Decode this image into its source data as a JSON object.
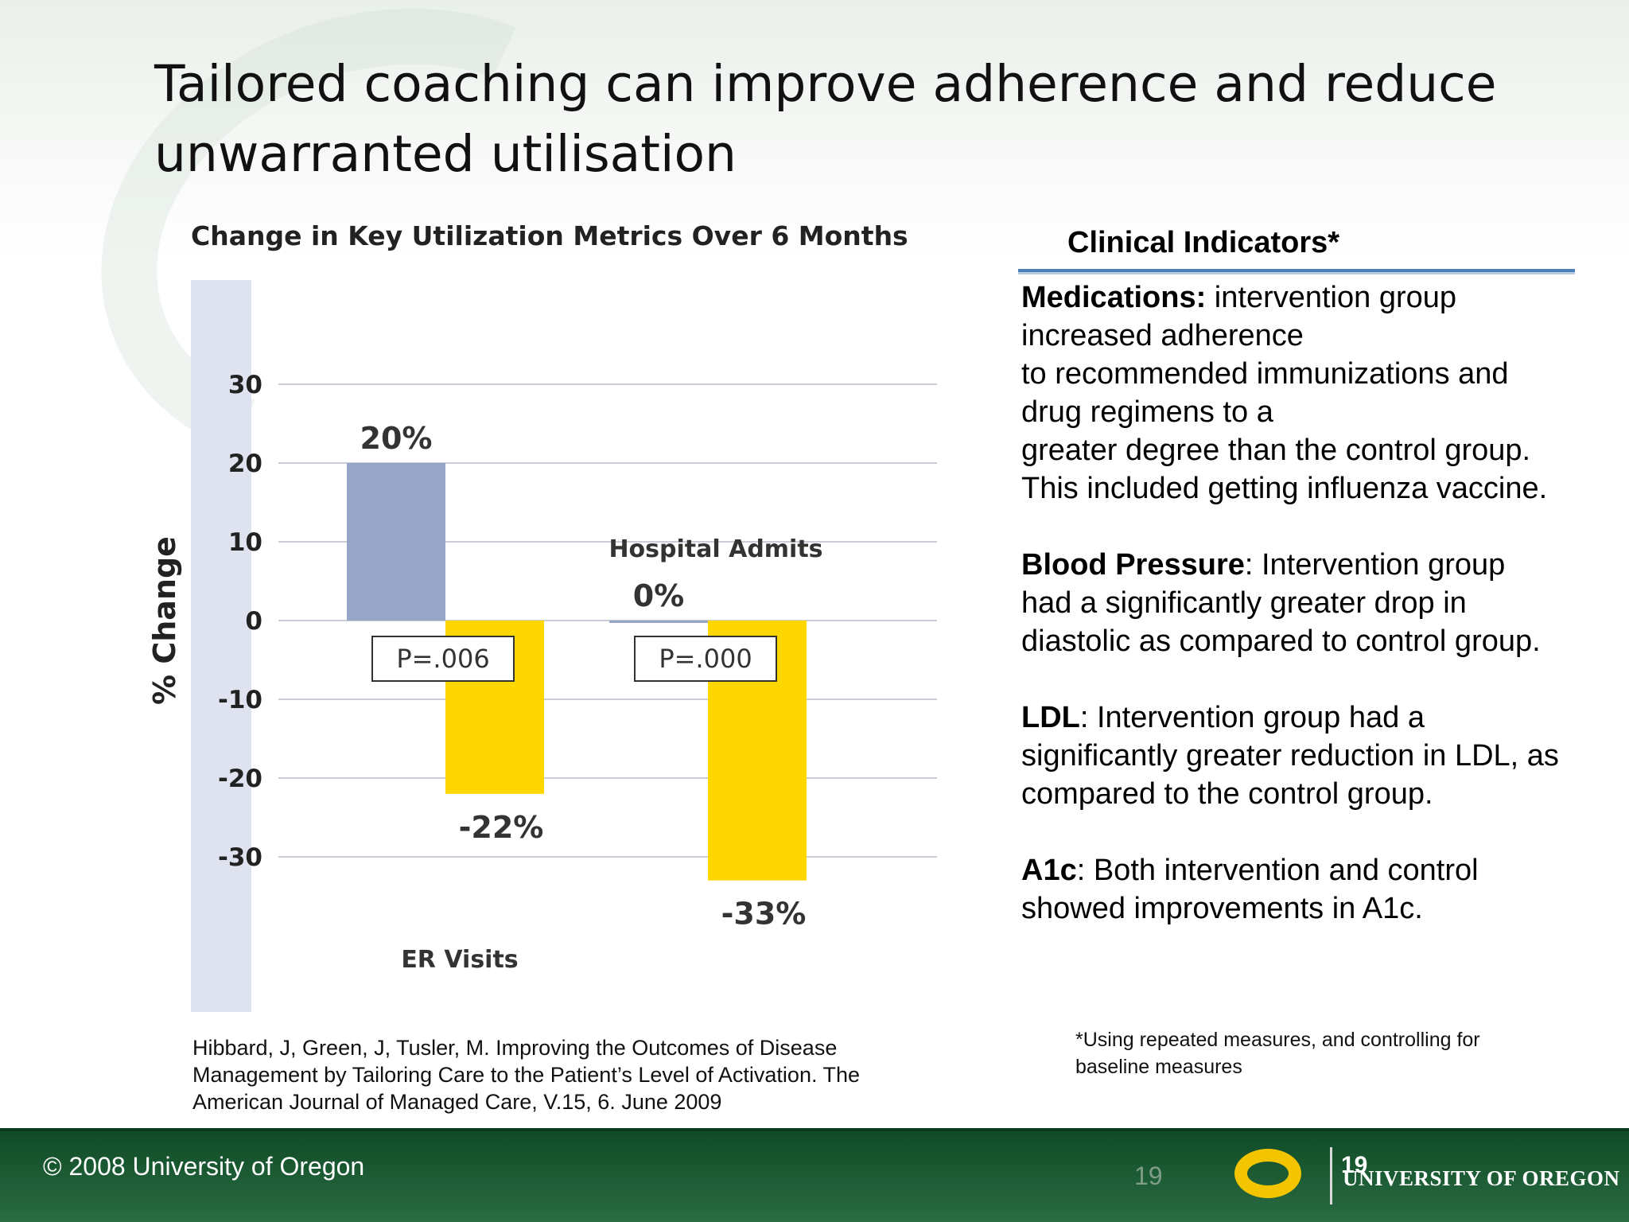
{
  "slide": {
    "title": "Tailored coaching can improve adherence and reduce unwarranted utilisation"
  },
  "chart_data": {
    "type": "bar",
    "title": "Change in Key Utilization Metrics Over 6 Months",
    "ylabel": "% Change",
    "ylim": [
      -37,
      33
    ],
    "yticks": [
      30,
      20,
      10,
      0,
      -10,
      -20,
      -30
    ],
    "grid": true,
    "groups": [
      {
        "label": "ER Visits",
        "p_value": "P=.006",
        "bars": [
          {
            "value": 20,
            "label": "20%",
            "color": "#97a5c6"
          },
          {
            "value": -22,
            "label": "-22%",
            "color": "#fed700"
          }
        ]
      },
      {
        "label": "Hospital Admits",
        "p_value": "P=.000",
        "bars": [
          {
            "value": 0,
            "label": "0%",
            "color": "#97a5c6"
          },
          {
            "value": -33,
            "label": "-33%",
            "color": "#fed700"
          }
        ]
      }
    ]
  },
  "citation": "Hibbard, J, Green, J, Tusler, M. Improving the Outcomes of Disease Management by Tailoring Care to the Patient’s Level of Activation. The American Journal of Managed Care, V.15, 6. June 2009",
  "clinical": {
    "title": "Clinical Indicators*",
    "items": [
      {
        "term": "Medications:",
        "lines": [
          " intervention group increased adherence",
          "to recommended immunizations and drug regimens to a",
          "greater degree than the control group. This included getting influenza vaccine."
        ]
      },
      {
        "term": "Blood Pressure",
        "text": ": Intervention group had a significantly greater drop in diastolic as compared to control group."
      },
      {
        "term": "LDL",
        "text": ": Intervention group had a significantly greater reduction in LDL, as compared to the control group."
      },
      {
        "term": "A1c",
        "text": ": Both intervention and control showed improvements in A1c."
      }
    ],
    "footnote": "*Using repeated measures, and controlling for baseline measures"
  },
  "footer": {
    "copyright": "© 2008 University of Oregon",
    "page_number": "19",
    "page_number_overlay": "19",
    "university_name": "UNIVERSITY OF OREGON"
  }
}
